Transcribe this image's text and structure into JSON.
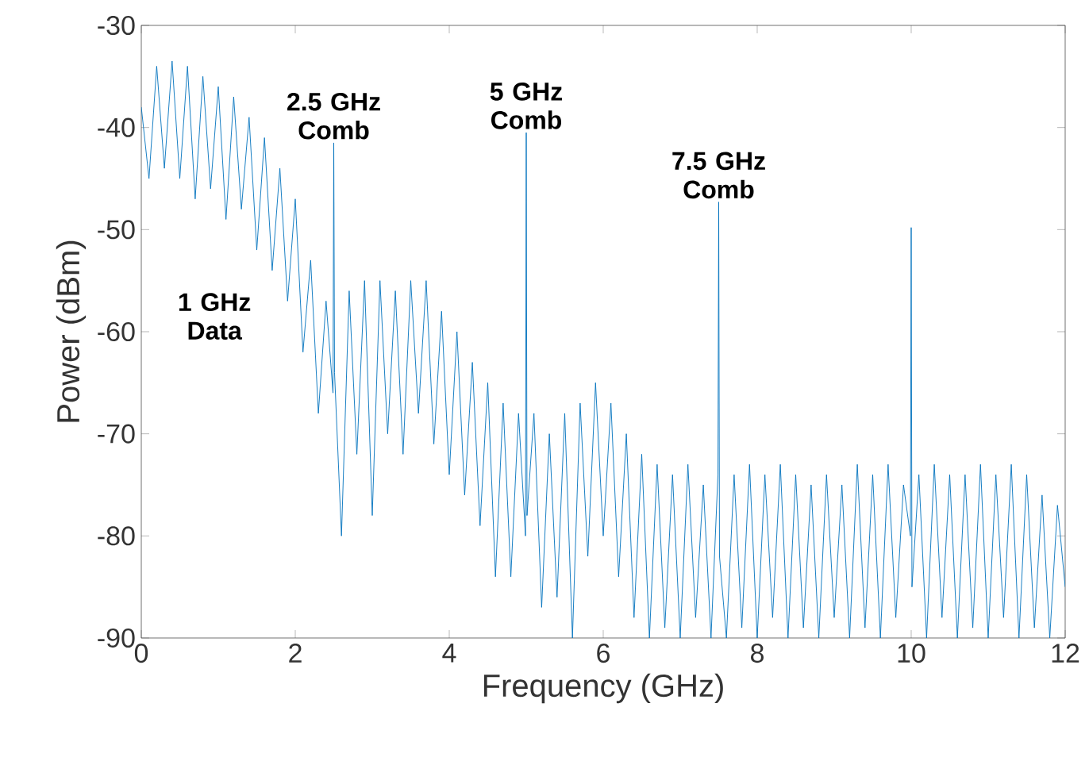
{
  "chart_data": {
    "type": "line",
    "xlabel": "Frequency (GHz)",
    "ylabel": "Power (dBm)",
    "xlim": [
      0,
      12
    ],
    "ylim": [
      -90,
      -30
    ],
    "xticks": [
      0,
      2,
      4,
      6,
      8,
      10,
      12
    ],
    "yticks": [
      -90,
      -80,
      -70,
      -60,
      -50,
      -40,
      -30
    ],
    "grid": false,
    "marker": "none",
    "line_style": "solid",
    "series": [
      {
        "color": "#0072bd",
        "x": [
          0.0,
          0.1,
          0.2,
          0.3,
          0.4,
          0.5,
          0.6,
          0.7,
          0.8,
          0.9,
          1.0,
          1.1,
          1.2,
          1.3,
          1.4,
          1.5,
          1.6,
          1.7,
          1.8,
          1.9,
          2.0,
          2.1,
          2.2,
          2.3,
          2.4,
          2.49,
          2.5,
          2.51,
          2.6,
          2.7,
          2.8,
          2.9,
          3.0,
          3.1,
          3.2,
          3.3,
          3.4,
          3.5,
          3.6,
          3.7,
          3.8,
          3.9,
          4.0,
          4.1,
          4.2,
          4.3,
          4.4,
          4.5,
          4.6,
          4.7,
          4.8,
          4.9,
          4.99,
          5.0,
          5.01,
          5.1,
          5.2,
          5.3,
          5.4,
          5.5,
          5.6,
          5.7,
          5.8,
          5.9,
          6.0,
          6.1,
          6.2,
          6.3,
          6.4,
          6.5,
          6.6,
          6.7,
          6.8,
          6.9,
          7.0,
          7.1,
          7.2,
          7.3,
          7.4,
          7.49,
          7.5,
          7.51,
          7.6,
          7.7,
          7.8,
          7.9,
          8.0,
          8.1,
          8.2,
          8.3,
          8.4,
          8.5,
          8.6,
          8.7,
          8.8,
          8.9,
          9.0,
          9.1,
          9.2,
          9.3,
          9.4,
          9.5,
          9.6,
          9.7,
          9.8,
          9.9,
          9.99,
          10.0,
          10.01,
          10.1,
          10.2,
          10.3,
          10.4,
          10.5,
          10.6,
          10.7,
          10.8,
          10.9,
          11.0,
          11.1,
          11.2,
          11.3,
          11.4,
          11.5,
          11.6,
          11.7,
          11.8,
          11.9,
          12.0
        ],
        "values": [
          -38,
          -45,
          -34,
          -44,
          -33.5,
          -45,
          -34,
          -47,
          -35,
          -46,
          -36,
          -49,
          -37,
          -48,
          -39,
          -52,
          -41,
          -54,
          -44,
          -57,
          -47,
          -62,
          -53,
          -68,
          -57,
          -66,
          -41.5,
          -64,
          -80,
          -56,
          -72,
          -55,
          -78,
          -55,
          -70,
          -56,
          -72,
          -55,
          -68,
          -55,
          -71,
          -58,
          -74,
          -60,
          -76,
          -63,
          -79,
          -65,
          -84,
          -67,
          -84,
          -68,
          -80,
          -40.5,
          -78,
          -68,
          -87,
          -70,
          -86,
          -68,
          -90,
          -67,
          -82,
          -65,
          -80,
          -67,
          -84,
          -70,
          -88,
          -72,
          -90,
          -73,
          -89,
          -74,
          -90,
          -73,
          -88,
          -75,
          -90,
          -74,
          -47.3,
          -82,
          -90,
          -74,
          -89,
          -73,
          -90,
          -74,
          -88,
          -73,
          -90,
          -74,
          -89,
          -75,
          -90,
          -74,
          -88,
          -75,
          -90,
          -73,
          -89,
          -74,
          -90,
          -73,
          -88,
          -75,
          -80,
          -49.8,
          -85,
          -74,
          -90,
          -73,
          -88,
          -74,
          -90,
          -74,
          -89,
          -73,
          -90,
          -74,
          -88,
          -73,
          -90,
          -74,
          -89,
          -76,
          -90,
          -77,
          -85
        ]
      }
    ],
    "annotations": [
      {
        "text": "2.5 GHz Comb",
        "x": 2.5,
        "y": -41.5
      },
      {
        "text": "5 GHz Comb",
        "x": 5,
        "y": -40.5
      },
      {
        "text": "7.5 GHz Comb",
        "x": 7.5,
        "y": -47.3
      },
      "1 GHz Data"
    ]
  }
}
